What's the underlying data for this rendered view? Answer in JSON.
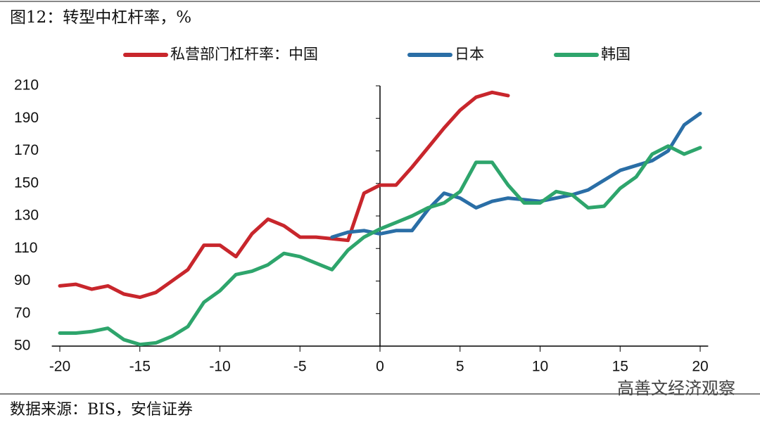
{
  "chart_data": {
    "type": "line",
    "title": "图12：转型中杠杆率，%",
    "source": "数据来源：BIS，安信证券",
    "watermark": "高善文经济观察",
    "x": [
      -20,
      -19,
      -18,
      -17,
      -16,
      -15,
      -14,
      -13,
      -12,
      -11,
      -10,
      -9,
      -8,
      -7,
      -6,
      -5,
      -4,
      -3,
      -2,
      -1,
      0,
      1,
      2,
      3,
      4,
      5,
      6,
      7,
      8,
      9,
      10,
      11,
      12,
      13,
      14,
      15,
      16,
      17,
      18,
      19,
      20
    ],
    "series": [
      {
        "name": "私营部门杠杆率：中国",
        "color": "#c8262c",
        "values": [
          87,
          88,
          85,
          87,
          82,
          80,
          83,
          90,
          97,
          112,
          112,
          105,
          119,
          128,
          124,
          117,
          117,
          116,
          115,
          144,
          149,
          149,
          160,
          172,
          184,
          195,
          203,
          206,
          204,
          null,
          null,
          null,
          null,
          null,
          null,
          null,
          null,
          null,
          null,
          null,
          null
        ]
      },
      {
        "name": "日本",
        "color": "#2a6ea6",
        "values": [
          null,
          null,
          null,
          null,
          null,
          null,
          null,
          null,
          null,
          null,
          null,
          null,
          null,
          null,
          null,
          null,
          null,
          117,
          120,
          121,
          119,
          121,
          121,
          134,
          144,
          141,
          135,
          139,
          141,
          140,
          139,
          141,
          143,
          146,
          152,
          158,
          161,
          164,
          170,
          186,
          193
        ]
      },
      {
        "name": "韩国",
        "color": "#2ea56c",
        "values": [
          58,
          58,
          59,
          61,
          54,
          51,
          52,
          56,
          62,
          77,
          84,
          94,
          96,
          100,
          107,
          105,
          101,
          97,
          109,
          117,
          122,
          126,
          130,
          135,
          138,
          145,
          163,
          163,
          149,
          138,
          138,
          145,
          143,
          135,
          136,
          147,
          154,
          168,
          173,
          168,
          172
        ]
      }
    ],
    "xlim": [
      -20.5,
      20.5
    ],
    "xticks": [
      -20,
      -15,
      -10,
      -5,
      0,
      5,
      10,
      15,
      20
    ],
    "ylim": [
      50,
      210
    ],
    "yticks": [
      50,
      70,
      90,
      110,
      130,
      150,
      170,
      190,
      210
    ]
  }
}
